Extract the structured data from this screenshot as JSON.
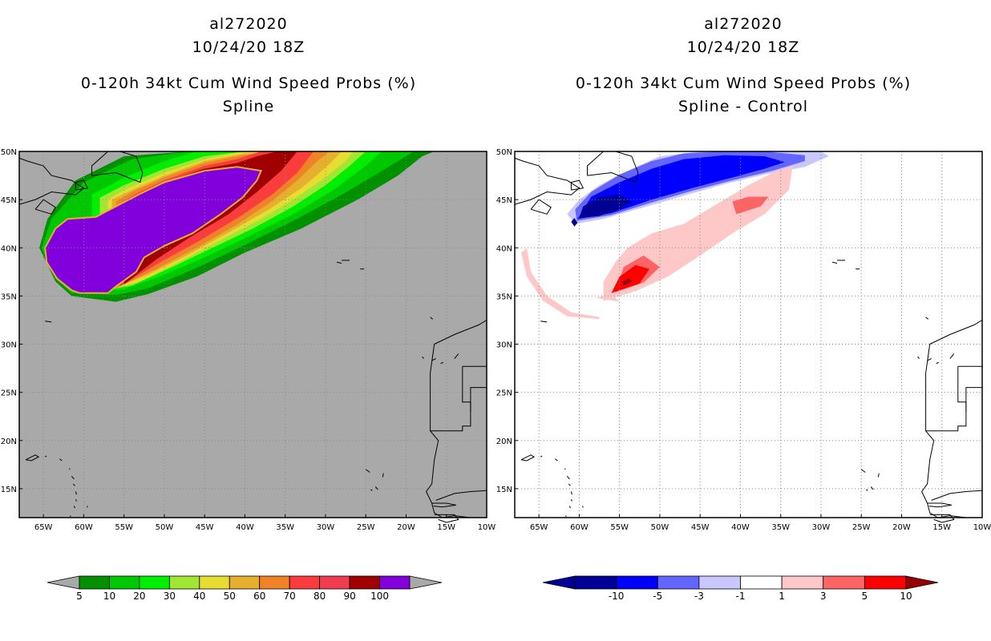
{
  "chart_data": [
    {
      "type": "heatmap",
      "panel": "left",
      "title_lines": [
        "al272020",
        "10/24/20 18Z",
        "0-120h 34kt Cum Wind Speed Probs (%)",
        "Spline"
      ],
      "xlim": [
        -68,
        -10
      ],
      "ylim": [
        12,
        50
      ],
      "x_tick_labels": [
        "65W",
        "60W",
        "55W",
        "50W",
        "45W",
        "40W",
        "35W",
        "30W",
        "25W",
        "20W",
        "15W",
        "10W"
      ],
      "y_tick_labels": [
        "15N",
        "20N",
        "25N",
        "30N",
        "35N",
        "40N",
        "45N",
        "50N"
      ],
      "background": "#a9a9a9",
      "colorbar": {
        "labels": [
          "5",
          "10",
          "20",
          "30",
          "40",
          "50",
          "60",
          "70",
          "80",
          "90",
          "100"
        ],
        "colors": [
          "#009000",
          "#00c800",
          "#00ee00",
          "#a0e632",
          "#e6dc32",
          "#e6af2d",
          "#f08228",
          "#fa3c3c",
          "#f03c50",
          "#a00000",
          "#8200dc"
        ],
        "end_colors": [
          "#a9a9a9",
          "#a9a9a9"
        ]
      },
      "swath": {
        "levels": [
          5,
          10,
          20,
          30,
          40,
          50,
          60,
          70,
          80,
          90,
          100
        ],
        "description": "Cumulative probability swath extending from 62W 40N northeast to 38W 50N"
      }
    },
    {
      "type": "heatmap",
      "panel": "right",
      "title_lines": [
        "al272020",
        "10/24/20 18Z",
        "0-120h 34kt Cum Wind Speed Probs (%)",
        "Spline - Control"
      ],
      "xlim": [
        -68,
        -10
      ],
      "ylim": [
        12,
        50
      ],
      "x_tick_labels": [
        "65W",
        "60W",
        "55W",
        "50W",
        "45W",
        "40W",
        "35W",
        "30W",
        "25W",
        "20W",
        "15W",
        "10W"
      ],
      "y_tick_labels": [
        "15N",
        "20N",
        "25N",
        "30N",
        "35N",
        "40N",
        "45N",
        "50N"
      ],
      "background": "#ffffff",
      "colorbar": {
        "labels": [
          "-10",
          "-5",
          "-3",
          "-1",
          "1",
          "3",
          "5",
          "10"
        ],
        "colors": [
          "#000096",
          "#0000ff",
          "#6464ff",
          "#c8c8ff",
          "#ffffff",
          "#ffc8c8",
          "#ff6464",
          "#ff0000"
        ],
        "end_colors": [
          "#000096",
          "#960000"
        ]
      }
    }
  ]
}
